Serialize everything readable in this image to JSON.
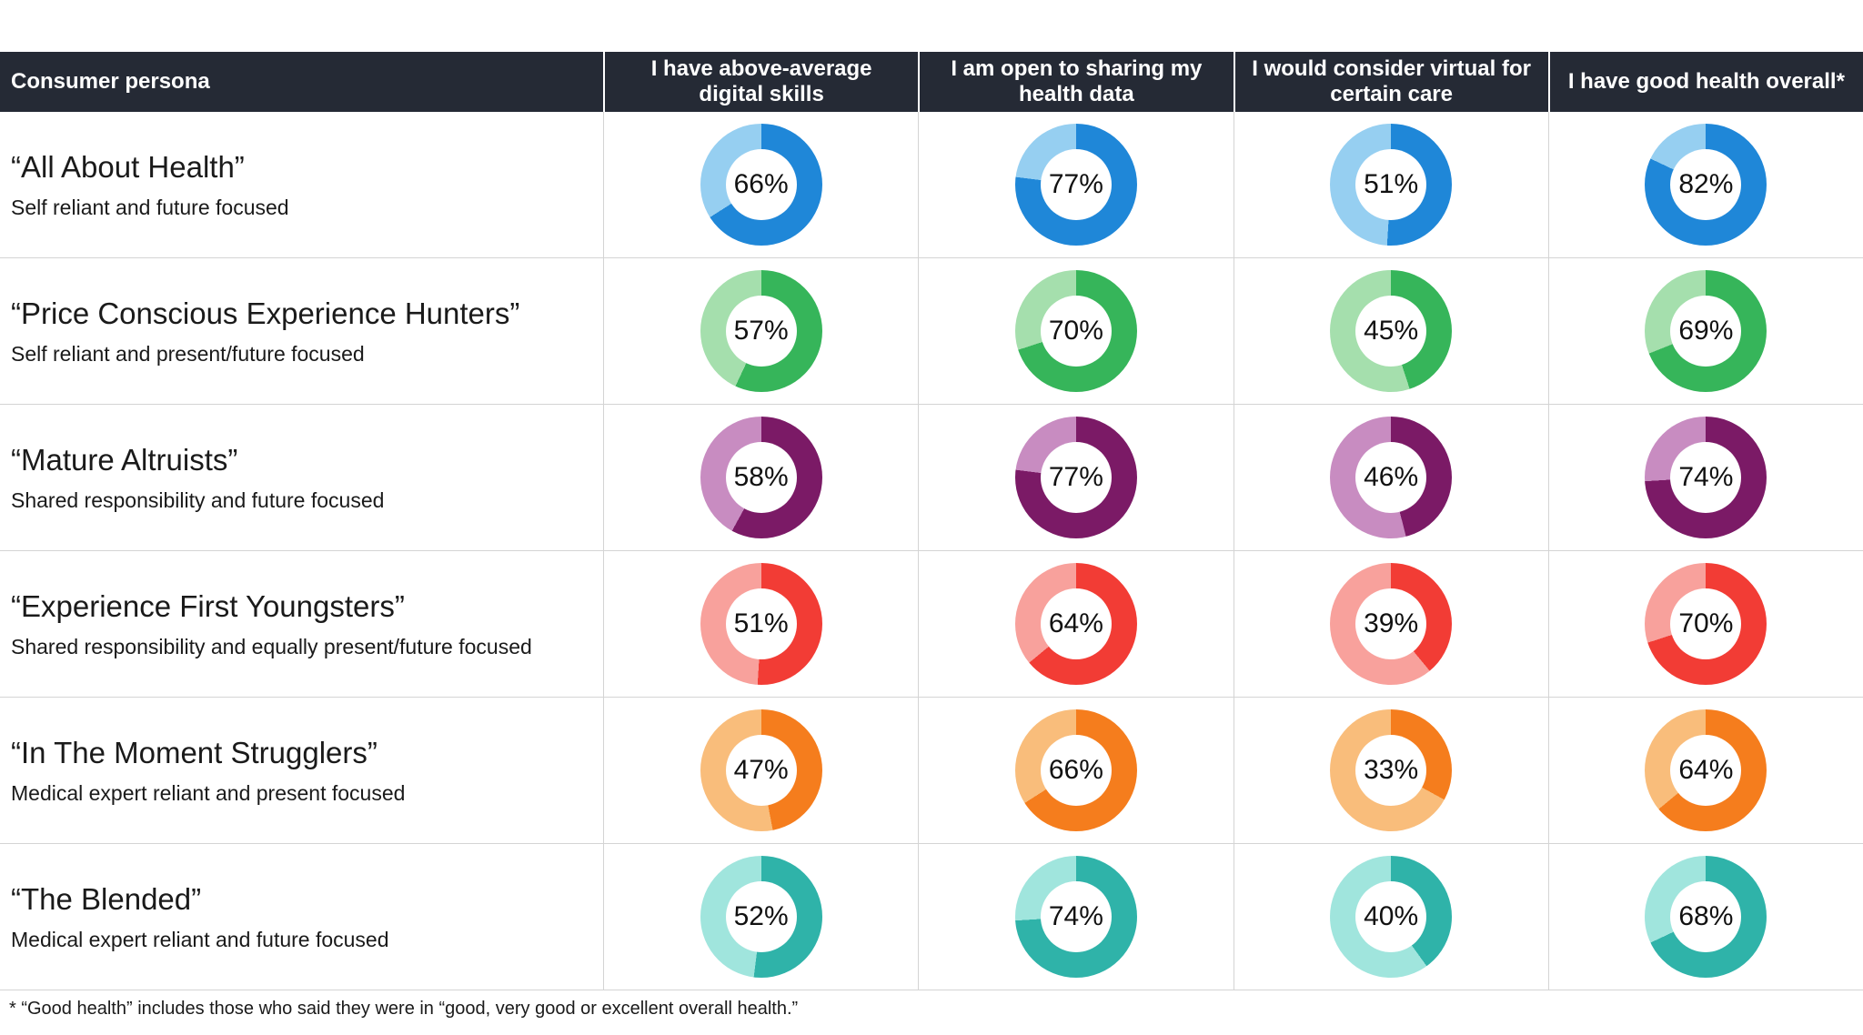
{
  "colors": {
    "header_background": "#252a35",
    "header_text": "#ffffff",
    "divider": "#d4d4d4",
    "body_text": "#1a1a1a"
  },
  "table": {
    "columns": [
      "Consumer persona",
      "I have above-average digital skills",
      "I am open to sharing my health data",
      "I would consider virtual for certain care",
      "I have good health overall*"
    ],
    "rows": [
      {
        "persona": "“All About Health”",
        "subtitle": "Self reliant and future focused",
        "color_dark": "#1f87d8",
        "color_light": "#96cff1",
        "values": [
          66,
          77,
          51,
          82
        ]
      },
      {
        "persona": "“Price Conscious Experience Hunters”",
        "subtitle": "Self reliant and present/future focused",
        "color_dark": "#36b55a",
        "color_light": "#a5dfad",
        "values": [
          57,
          70,
          45,
          69
        ]
      },
      {
        "persona": "“Mature Altruists”",
        "subtitle": "Shared responsibility and future focused",
        "color_dark": "#7b1a66",
        "color_light": "#c88cc1",
        "values": [
          58,
          77,
          46,
          74
        ]
      },
      {
        "persona": "“Experience First Youngsters”",
        "subtitle": "Shared responsibility and equally present/future focused",
        "color_dark": "#f23c35",
        "color_light": "#f8a19c",
        "values": [
          51,
          64,
          39,
          70
        ]
      },
      {
        "persona": "“In The Moment Strugglers”",
        "subtitle": "Medical expert reliant and present focused",
        "color_dark": "#f57d1d",
        "color_light": "#f9bd7b",
        "values": [
          47,
          66,
          33,
          64
        ]
      },
      {
        "persona": "“The Blended”",
        "subtitle": "Medical expert reliant and future focused",
        "color_dark": "#2fb3a9",
        "color_light": "#a0e5dd",
        "values": [
          52,
          74,
          40,
          68
        ]
      }
    ]
  },
  "footnote": "*  “Good health” includes those who said they were in “good, very good or excellent overall health.”",
  "chart_data": {
    "type": "table",
    "title": "",
    "value_format": "percent",
    "columns": [
      "I have above-average digital skills",
      "I am open to sharing my health data",
      "I would consider virtual for certain care",
      "I have good health overall*"
    ],
    "categories": [
      "All About Health",
      "Price Conscious Experience Hunters",
      "Mature Altruists",
      "Experience First Youngsters",
      "In The Moment Strugglers",
      "The Blended"
    ],
    "category_descriptions": [
      "Self reliant and future focused",
      "Self reliant and present/future focused",
      "Shared responsibility and future focused",
      "Shared responsibility and equally present/future focused",
      "Medical expert reliant and present focused",
      "Medical expert reliant and future focused"
    ],
    "series": [
      {
        "name": "All About Health",
        "values": [
          66,
          77,
          51,
          82
        ]
      },
      {
        "name": "Price Conscious Experience Hunters",
        "values": [
          57,
          70,
          45,
          69
        ]
      },
      {
        "name": "Mature Altruists",
        "values": [
          58,
          77,
          46,
          74
        ]
      },
      {
        "name": "Experience First Youngsters",
        "values": [
          51,
          64,
          39,
          70
        ]
      },
      {
        "name": "In The Moment Strugglers",
        "values": [
          47,
          66,
          33,
          64
        ]
      },
      {
        "name": "The Blended",
        "values": [
          52,
          74,
          40,
          68
        ]
      }
    ],
    "cell_chart_type": "donut",
    "donut_convention": "dark segment = value, starts at 12 o'clock clockwise; light segment = remainder; percent label in center"
  }
}
